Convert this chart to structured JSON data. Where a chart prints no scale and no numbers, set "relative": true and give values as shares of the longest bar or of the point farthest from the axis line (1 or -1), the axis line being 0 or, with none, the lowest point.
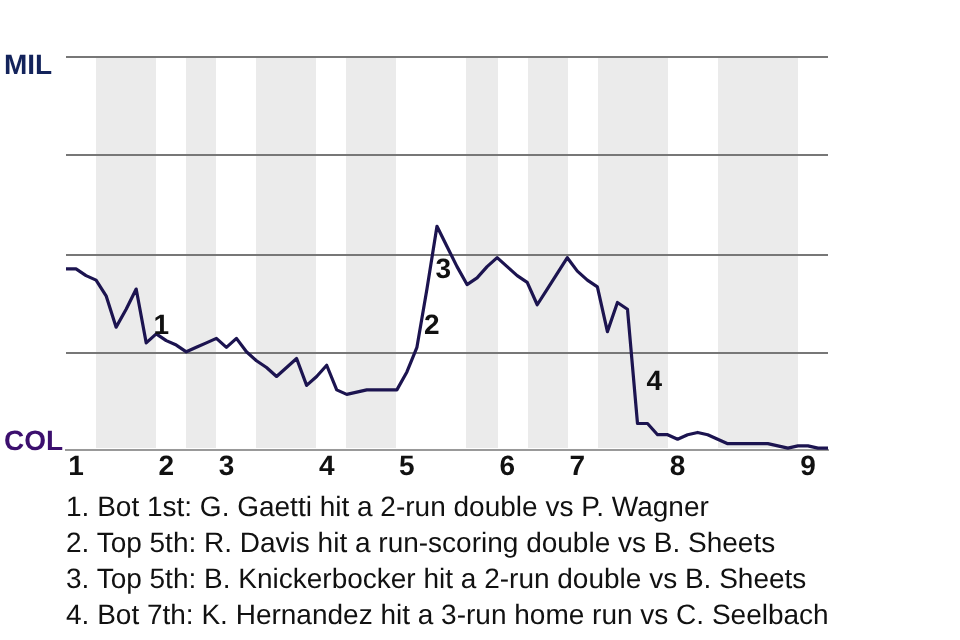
{
  "chart_data": {
    "type": "line",
    "relative": true,
    "categories": [
      null,
      "1",
      null,
      null,
      null,
      null,
      null,
      null,
      null,
      null,
      "2",
      null,
      null,
      null,
      null,
      null,
      "3",
      null,
      null,
      null,
      null,
      null,
      null,
      null,
      null,
      null,
      "4",
      null,
      null,
      null,
      null,
      null,
      null,
      null,
      "5",
      null,
      null,
      null,
      null,
      null,
      null,
      null,
      null,
      null,
      "6",
      null,
      null,
      null,
      null,
      null,
      null,
      "7",
      null,
      null,
      null,
      null,
      null,
      null,
      null,
      null,
      null,
      "8",
      null,
      null,
      null,
      null,
      null,
      null,
      null,
      null,
      null,
      null,
      null,
      null,
      "9",
      null,
      null
    ],
    "series": [
      {
        "color": "#1c1450",
        "values": [
          0.81,
          0.81,
          0.78,
          0.76,
          0.69,
          0.55,
          0.63,
          0.72,
          0.48,
          0.52,
          0.49,
          0.47,
          0.44,
          0.46,
          0.48,
          0.5,
          0.46,
          0.5,
          0.44,
          0.4,
          0.37,
          0.33,
          0.37,
          0.41,
          0.29,
          0.33,
          0.38,
          0.27,
          0.25,
          0.26,
          0.27,
          0.27,
          0.27,
          0.27,
          0.35,
          0.46,
          0.72,
          1,
          0.91,
          0.82,
          0.74,
          0.77,
          0.82,
          0.86,
          0.82,
          0.78,
          0.75,
          0.65,
          0.72,
          0.79,
          0.86,
          0.8,
          0.76,
          0.73,
          0.53,
          0.66,
          0.63,
          0.12,
          0.12,
          0.07,
          0.07,
          0.05,
          0.07,
          0.08,
          0.07,
          0.05,
          0.03,
          0.03,
          0.03,
          0.03,
          0.03,
          0.02,
          0.01,
          0.02,
          0.02,
          0.01,
          0.01
        ]
      }
    ],
    "ref_lines": [
      {
        "axis": "y",
        "value": 0.44,
        "color": "#777777"
      },
      {
        "axis": "y",
        "value": 0.88,
        "color": "#777777"
      },
      {
        "axis": "y",
        "value": 1.32,
        "color": "#777777"
      },
      {
        "axis": "y",
        "value": 1.76,
        "color": "#777777"
      }
    ],
    "legend": false,
    "marker": "none",
    "annotations": [
      "MIL",
      "COL",
      "1",
      "2",
      "3",
      "4",
      "1. Bot 1st: G. Gaetti hit a 2-run double vs P. Wagner",
      "2. Top 5th: R. Davis hit a run-scoring double vs B. Sheets",
      "3. Top 5th: B. Knickerbocker hit a 2-run double vs B. Sheets",
      "4. Bot 7th: K. Hernandez hit a 3-run home run vs C. Seelbach"
    ]
  }
}
